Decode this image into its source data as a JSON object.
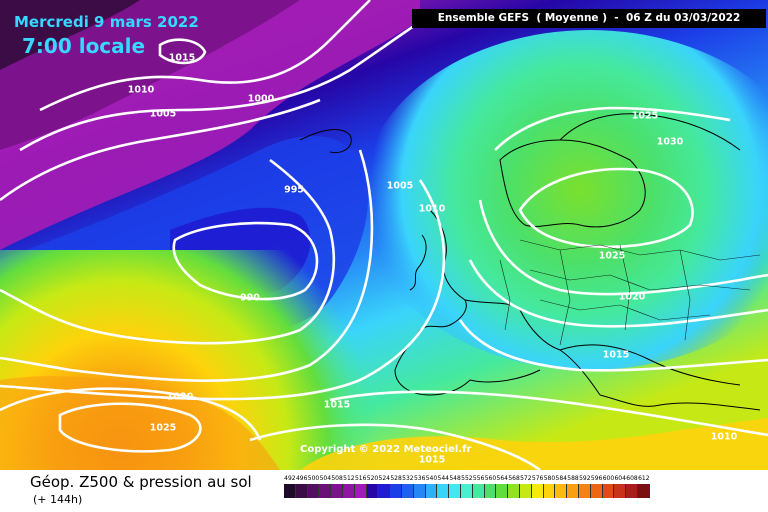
{
  "header": {
    "date": "Mercredi 9 mars 2022",
    "local_time": "7:00 locale",
    "ensemble": "Ensemble GEFS  ( Moyenne )  -  06 Z du 03/03/2022"
  },
  "copyright": "Copyright © 2022 Meteociel.fr",
  "isobars": [
    {
      "label": "1015",
      "dark": false
    },
    {
      "label": "1010",
      "dark": false
    },
    {
      "label": "1005",
      "dark": false
    },
    {
      "label": "1000",
      "dark": false
    },
    {
      "label": "995",
      "dark": false
    },
    {
      "label": "990",
      "dark": false
    },
    {
      "label": "1005",
      "dark": false
    },
    {
      "label": "1010",
      "dark": false
    },
    {
      "label": "1025",
      "dark": false
    },
    {
      "label": "1030",
      "dark": false
    },
    {
      "label": "1025",
      "dark": false
    },
    {
      "label": "1020",
      "dark": false
    },
    {
      "label": "1015",
      "dark": false
    },
    {
      "label": "1020",
      "dark": false
    },
    {
      "label": "1025",
      "dark": false
    },
    {
      "label": "1015",
      "dark": false
    },
    {
      "label": "1015",
      "dark": false
    },
    {
      "label": "1010",
      "dark": false
    }
  ],
  "footer": {
    "title": "Géop. Z500 & pression au sol",
    "subtitle": "(+ 144h)"
  },
  "legend": {
    "values": [
      "492",
      "496",
      "500",
      "504",
      "508",
      "512",
      "516",
      "520",
      "524",
      "528",
      "532",
      "536",
      "540",
      "544",
      "548",
      "552",
      "556",
      "560",
      "564",
      "568",
      "572",
      "576",
      "580",
      "584",
      "588",
      "592",
      "596",
      "600",
      "604",
      "608",
      "612"
    ],
    "colors": [
      "#1f0a2a",
      "#3c0c46",
      "#540d63",
      "#6a1077",
      "#7c128c",
      "#8e16a3",
      "#a11cb5",
      "#2606a6",
      "#1f1cd1",
      "#1c3ee7",
      "#1d62ef",
      "#2686f5",
      "#2fb0fb",
      "#3ad4fb",
      "#3fe9f0",
      "#48f0cf",
      "#45e99e",
      "#4ce06a",
      "#62dd3e",
      "#92e224",
      "#c6e915",
      "#f6e90c",
      "#fdd30c",
      "#fcba0d",
      "#f99f10",
      "#f48312",
      "#ec6614",
      "#e14a17",
      "#c8311a",
      "#a91d1c",
      "#7c0f12"
    ]
  },
  "colors": {
    "title_text": "#37d7ff",
    "isobar": "#ffffff",
    "coastline": "#000000"
  }
}
